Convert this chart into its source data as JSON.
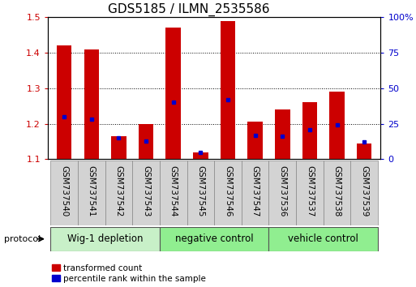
{
  "title": "GDS5185 / ILMN_2535586",
  "samples": [
    "GSM737540",
    "GSM737541",
    "GSM737542",
    "GSM737543",
    "GSM737544",
    "GSM737545",
    "GSM737546",
    "GSM737547",
    "GSM737536",
    "GSM737537",
    "GSM737538",
    "GSM737539"
  ],
  "transformed_counts": [
    1.42,
    1.41,
    1.165,
    1.2,
    1.47,
    1.12,
    1.49,
    1.205,
    1.24,
    1.26,
    1.29,
    1.145
  ],
  "percentile_ranks": [
    30,
    28,
    15,
    13,
    40,
    5,
    42,
    17,
    16,
    21,
    24,
    12
  ],
  "ylim_left": [
    1.1,
    1.5
  ],
  "ylim_right": [
    0,
    100
  ],
  "yticks_left": [
    1.1,
    1.2,
    1.3,
    1.4,
    1.5
  ],
  "yticks_right": [
    0,
    25,
    50,
    75,
    100
  ],
  "ytick_right_labels": [
    "0",
    "25",
    "50",
    "75",
    "100%"
  ],
  "groups": [
    {
      "label": "Wig-1 depletion",
      "start": 0,
      "end": 3,
      "color": "#c8f0c8"
    },
    {
      "label": "negative control",
      "start": 4,
      "end": 7,
      "color": "#90ee90"
    },
    {
      "label": "vehicle control",
      "start": 8,
      "end": 11,
      "color": "#90ee90"
    }
  ],
  "bar_color": "#cc0000",
  "percentile_color": "#0000cc",
  "bar_width": 0.55,
  "left_tick_color": "#cc0000",
  "right_tick_color": "#0000cc",
  "group_label_fontsize": 8.5,
  "title_fontsize": 11,
  "tick_label_fontsize": 7.5,
  "sample_box_color": "#d3d3d3",
  "legend_fontsize": 7.5
}
